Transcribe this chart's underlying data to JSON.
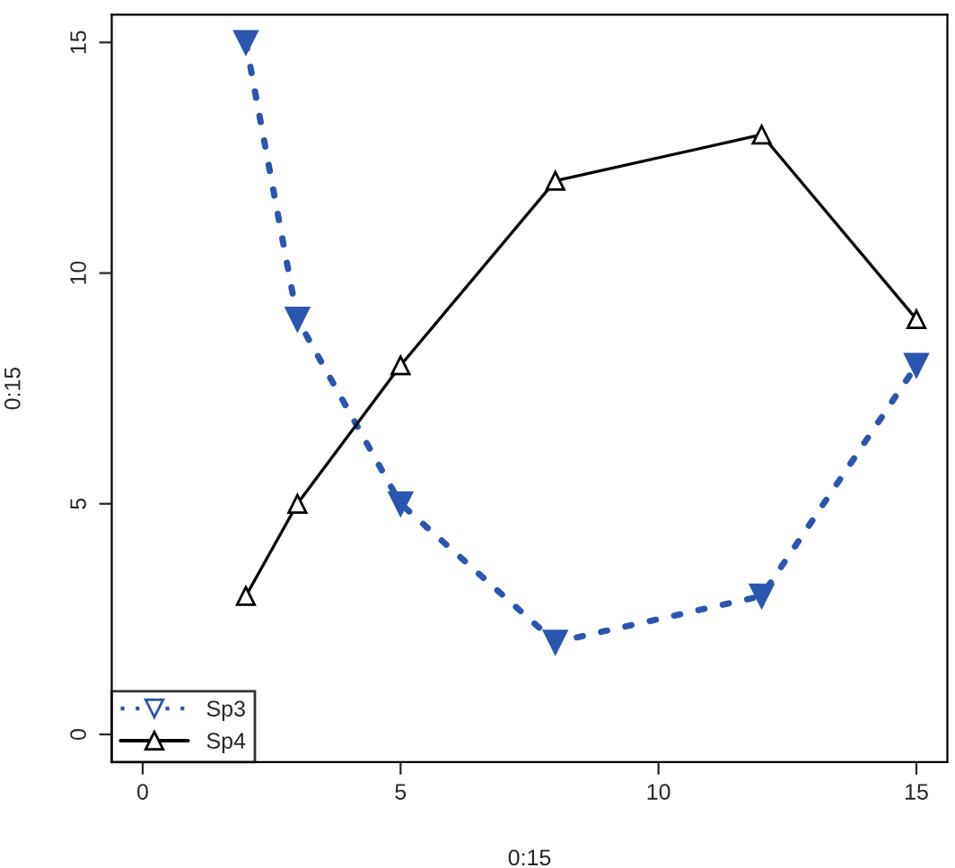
{
  "chart_data": {
    "type": "line",
    "xlabel": "0:15",
    "ylabel": "0:15",
    "xlim": [
      -0.6,
      15.6
    ],
    "ylim": [
      -0.6,
      15.6
    ],
    "xticks": [
      0,
      5,
      10,
      15
    ],
    "yticks": [
      0,
      5,
      10,
      15
    ],
    "grid": false,
    "legend": "bottom left",
    "series": [
      {
        "name": "Sp3",
        "color": "#2a56b0",
        "x": [
          2,
          3,
          5,
          8,
          12,
          15
        ],
        "values": [
          15,
          9,
          5,
          2,
          3,
          8
        ],
        "marker": "triangle_down",
        "line_style": "dotted"
      },
      {
        "name": "Sp4",
        "color": "#000000",
        "x": [
          2,
          3,
          5,
          8,
          12,
          15
        ],
        "values": [
          3,
          5,
          8,
          12,
          13,
          9
        ],
        "marker": "triangle",
        "line_style": "solid"
      }
    ]
  }
}
